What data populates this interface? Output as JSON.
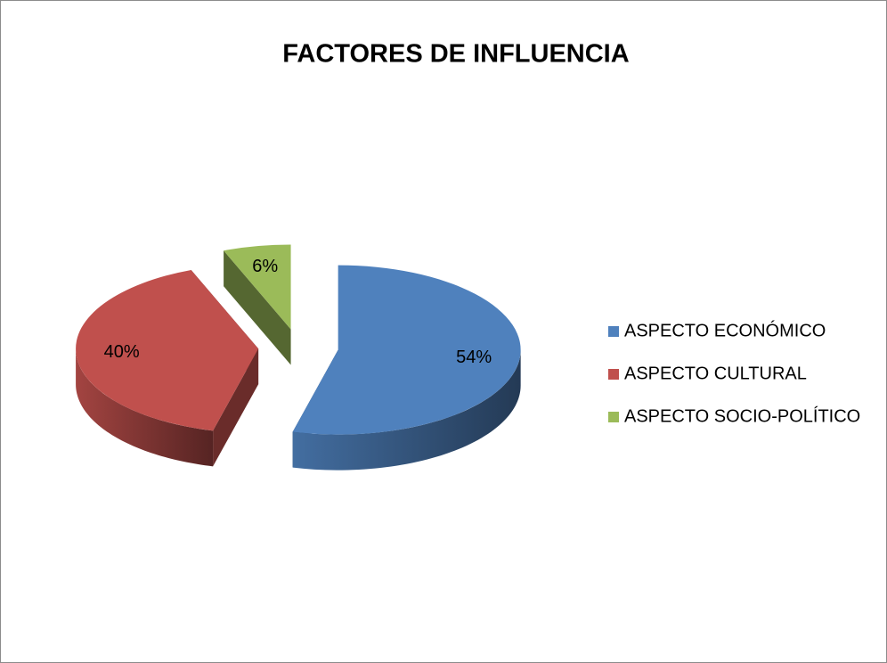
{
  "chart_data": {
    "type": "pie",
    "title": "FACTORES DE INFLUENCIA",
    "categories": [
      "ASPECTO ECONÓMICO",
      "ASPECTO CULTURAL",
      "ASPECTO SOCIO-POLÍTICO"
    ],
    "values": [
      54,
      40,
      6
    ],
    "value_labels": [
      "54%",
      "40%",
      "6%"
    ],
    "colors": [
      "#4f81bd",
      "#c0504d",
      "#9bbb59"
    ],
    "legend": "right"
  }
}
